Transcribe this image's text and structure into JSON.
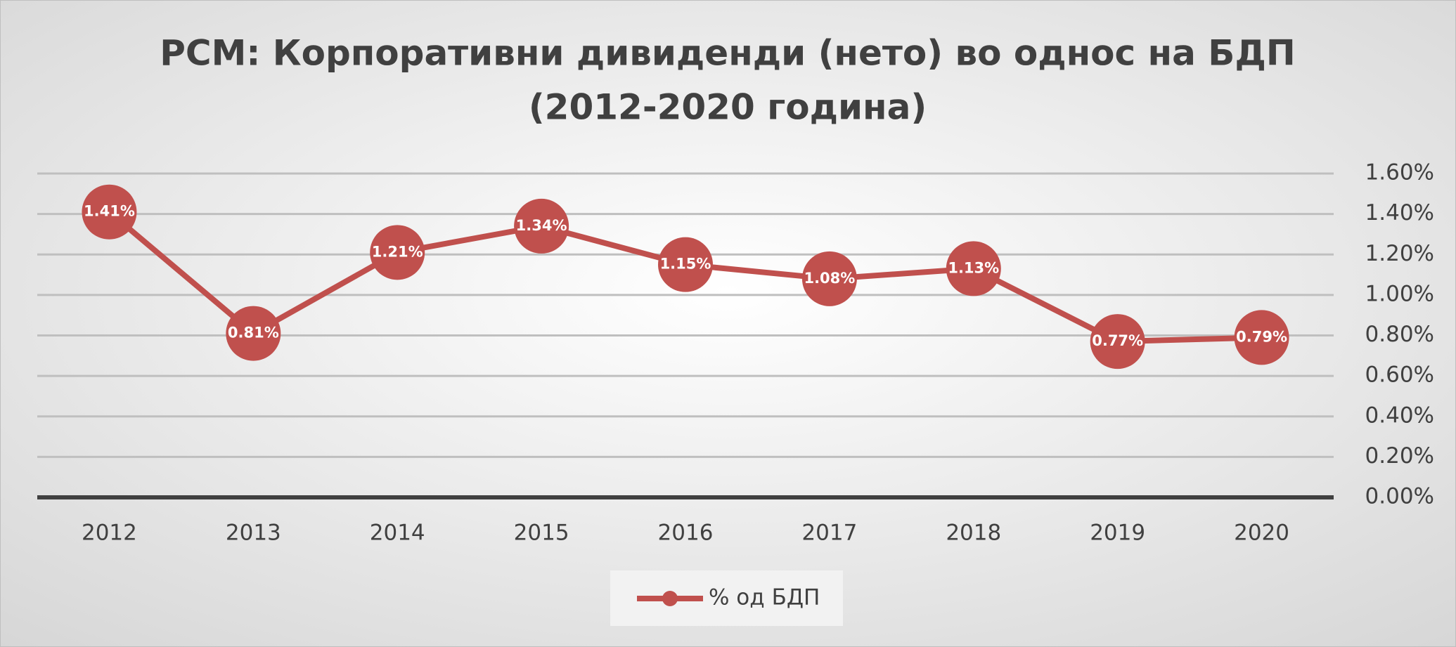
{
  "chart_data": {
    "type": "line",
    "title": [
      "РСМ: Корпоративни дивиденди (нето) во однос на БДП",
      "(2012-2020 година)"
    ],
    "categories": [
      "2012",
      "2013",
      "2014",
      "2015",
      "2016",
      "2017",
      "2018",
      "2019",
      "2020"
    ],
    "series": [
      {
        "name": "% од БДП",
        "color": "#c0504d",
        "values": [
          1.41,
          0.81,
          1.21,
          1.34,
          1.15,
          1.08,
          1.13,
          0.77,
          0.79
        ],
        "value_labels": [
          "1.41%",
          "0.81%",
          "1.21%",
          "1.34%",
          "1.15%",
          "1.08%",
          "1.13%",
          "0.77%",
          "0.79%"
        ]
      }
    ],
    "ylim": [
      0,
      1.6
    ],
    "yticks": [
      {
        "value": 0,
        "label": "0.00%"
      },
      {
        "value": 0.2,
        "label": "0.20%"
      },
      {
        "value": 0.4,
        "label": "0.40%"
      },
      {
        "value": 0.6,
        "label": "0.60%"
      },
      {
        "value": 0.8,
        "label": "0.80%"
      },
      {
        "value": 1.0,
        "label": "1.00%"
      },
      {
        "value": 1.2,
        "label": "1.20%"
      },
      {
        "value": 1.4,
        "label": "1.40%"
      },
      {
        "value": 1.6,
        "label": "1.60%"
      }
    ],
    "grid": true,
    "y_axis_side": "right",
    "legend": "bottom"
  }
}
